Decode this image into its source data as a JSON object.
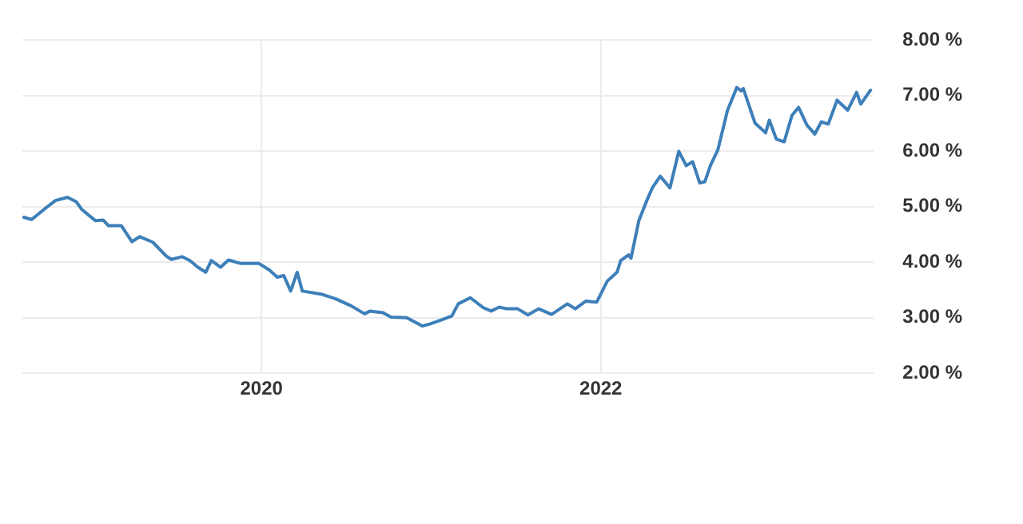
{
  "chart_data": {
    "type": "line",
    "grid": true,
    "marker": "none",
    "line_style": "solid",
    "xlim": [
      "2018-08-04",
      "2023-08-12"
    ],
    "xticks": [
      {
        "value": "2020",
        "label": "2020"
      },
      {
        "value": "2022",
        "label": "2022"
      }
    ],
    "ylim": [
      2,
      8
    ],
    "yticks": [
      {
        "value": 2,
        "label": "2.00 %"
      },
      {
        "value": 3,
        "label": "3.00 %"
      },
      {
        "value": 4,
        "label": "4.00 %"
      },
      {
        "value": 5,
        "label": "5.00 %"
      },
      {
        "value": 6,
        "label": "6.00 %"
      },
      {
        "value": 7,
        "label": "7.00 %"
      },
      {
        "value": 8,
        "label": "8.00 %"
      }
    ],
    "series": [
      {
        "color": "#3d7fb9",
        "x": [
          "2018-08-07",
          "2018-08-24",
          "2018-09-27",
          "2018-10-14",
          "2018-11-09",
          "2018-11-28",
          "2018-12-10",
          "2019-01-08",
          "2019-01-25",
          "2019-02-05",
          "2019-03-05",
          "2019-03-28",
          "2019-04-14",
          "2019-05-12",
          "2019-06-10",
          "2019-06-21",
          "2019-07-14",
          "2019-07-31",
          "2019-08-17",
          "2019-09-03",
          "2019-09-15",
          "2019-10-05",
          "2019-10-22",
          "2019-11-16",
          "2019-12-26",
          "2020-01-18",
          "2020-02-04",
          "2020-02-18",
          "2020-03-04",
          "2020-03-18",
          "2020-03-29",
          "2020-05-11",
          "2020-06-09",
          "2020-07-13",
          "2020-08-10",
          "2020-08-22",
          "2020-09-19",
          "2020-10-06",
          "2020-11-09",
          "2020-12-13",
          "2020-12-30",
          "2021-01-22",
          "2021-02-14",
          "2021-02-28",
          "2021-03-26",
          "2021-04-23",
          "2021-05-10",
          "2021-05-27",
          "2021-06-13",
          "2021-07-06",
          "2021-07-28",
          "2021-08-20",
          "2021-09-17",
          "2021-10-21",
          "2021-11-07",
          "2021-11-30",
          "2021-12-23",
          "2022-01-15",
          "2022-02-05",
          "2022-02-13",
          "2022-03-02",
          "2022-03-07",
          "2022-03-24",
          "2022-04-10",
          "2022-04-22",
          "2022-05-09",
          "2022-05-30",
          "2022-06-18",
          "2022-07-04",
          "2022-07-18",
          "2022-08-02",
          "2022-08-13",
          "2022-08-25",
          "2022-09-10",
          "2022-10-01",
          "2022-10-21",
          "2022-10-30",
          "2022-11-04",
          "2022-11-29",
          "2022-12-16",
          "2022-12-22",
          "2022-12-30",
          "2023-01-14",
          "2023-01-31",
          "2023-02-17",
          "2023-03-03",
          "2023-03-21",
          "2023-04-07",
          "2023-04-21",
          "2023-05-06",
          "2023-05-25",
          "2023-06-17",
          "2023-07-06",
          "2023-07-15",
          "2023-08-05"
        ],
        "values": [
          4.81,
          4.77,
          5.0,
          5.11,
          5.17,
          5.09,
          4.95,
          4.75,
          4.76,
          4.66,
          4.66,
          4.37,
          4.46,
          4.36,
          4.11,
          4.05,
          4.1,
          4.03,
          3.91,
          3.82,
          4.03,
          3.91,
          4.04,
          3.98,
          3.98,
          3.86,
          3.73,
          3.76,
          3.48,
          3.82,
          3.48,
          3.42,
          3.34,
          3.21,
          3.07,
          3.12,
          3.09,
          3.01,
          3.0,
          2.85,
          2.89,
          2.96,
          3.03,
          3.25,
          3.36,
          3.18,
          3.12,
          3.19,
          3.16,
          3.16,
          3.05,
          3.16,
          3.06,
          3.25,
          3.16,
          3.3,
          3.28,
          3.66,
          3.82,
          4.03,
          4.13,
          4.07,
          4.75,
          5.11,
          5.34,
          5.55,
          5.34,
          6.0,
          5.74,
          5.81,
          5.43,
          5.45,
          5.74,
          6.02,
          6.74,
          7.15,
          7.09,
          7.13,
          6.51,
          6.38,
          6.33,
          6.56,
          6.22,
          6.17,
          6.65,
          6.79,
          6.47,
          6.31,
          6.53,
          6.49,
          6.92,
          6.74,
          7.06,
          6.85,
          7.1
        ]
      }
    ]
  }
}
